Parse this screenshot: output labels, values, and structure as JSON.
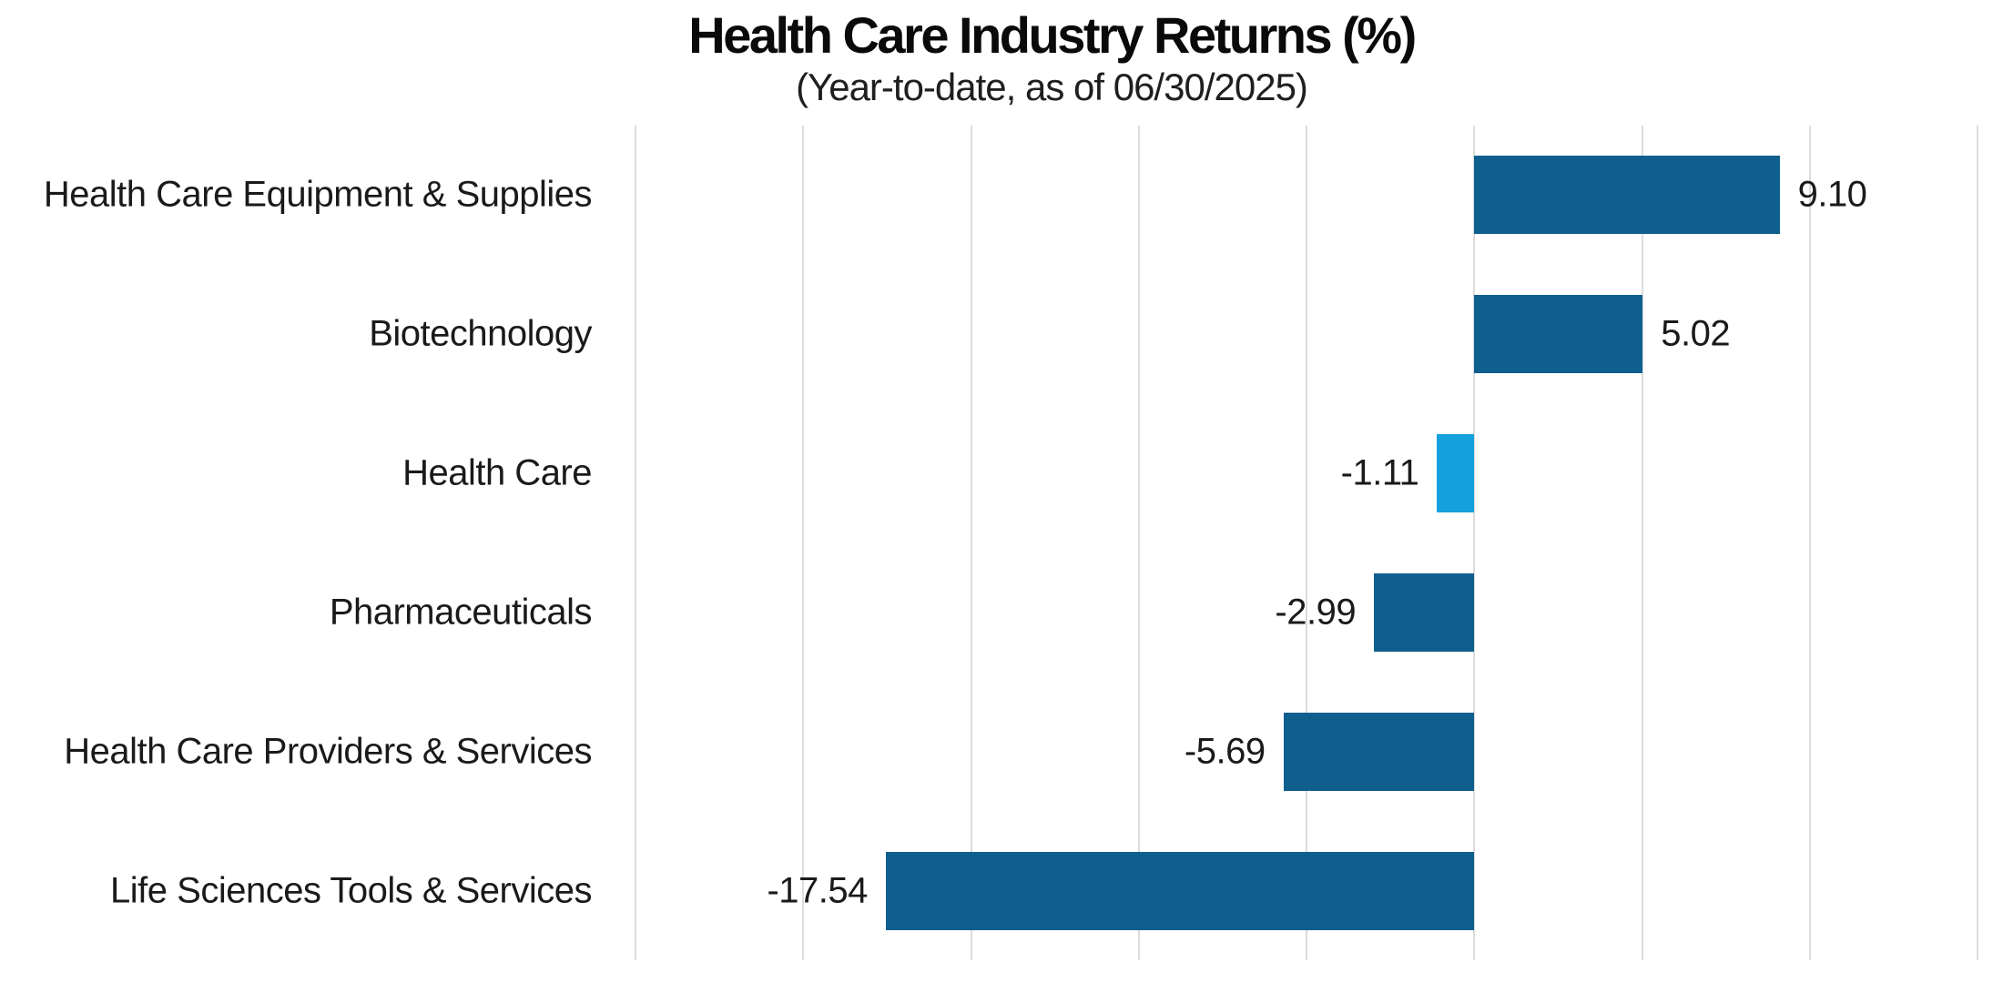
{
  "header": {
    "title": "Health Care Industry Returns (%)",
    "subtitle": "(Year-to-date, as of 06/30/2025)"
  },
  "chart_data": {
    "type": "bar",
    "orientation": "horizontal",
    "title": "Health Care Industry Returns (%)",
    "subtitle": "(Year-to-date, as of 06/30/2025)",
    "categories": [
      "Health Care Equipment & Supplies",
      "Biotechnology",
      "Health Care",
      "Pharmaceuticals",
      "Health Care Providers & Services",
      "Life Sciences Tools & Services"
    ],
    "values": [
      9.1,
      5.02,
      -1.11,
      -2.99,
      -5.69,
      -17.54
    ],
    "value_labels": [
      "9.10",
      "5.02",
      "-1.11",
      "-2.99",
      "-5.69",
      "-17.54"
    ],
    "highlight_index": 2,
    "highlight_category": "Health Care",
    "xlim": [
      -25,
      15
    ],
    "gridline_step": 5,
    "grid": "vertical-only",
    "legend_position": "none",
    "axis_tick_labels_shown": false,
    "colors": {
      "bar": "#0e5e8e",
      "highlight_bar": "#14a0dd",
      "gridline": "#dcdcdc",
      "text": "#1a1a1a"
    }
  }
}
